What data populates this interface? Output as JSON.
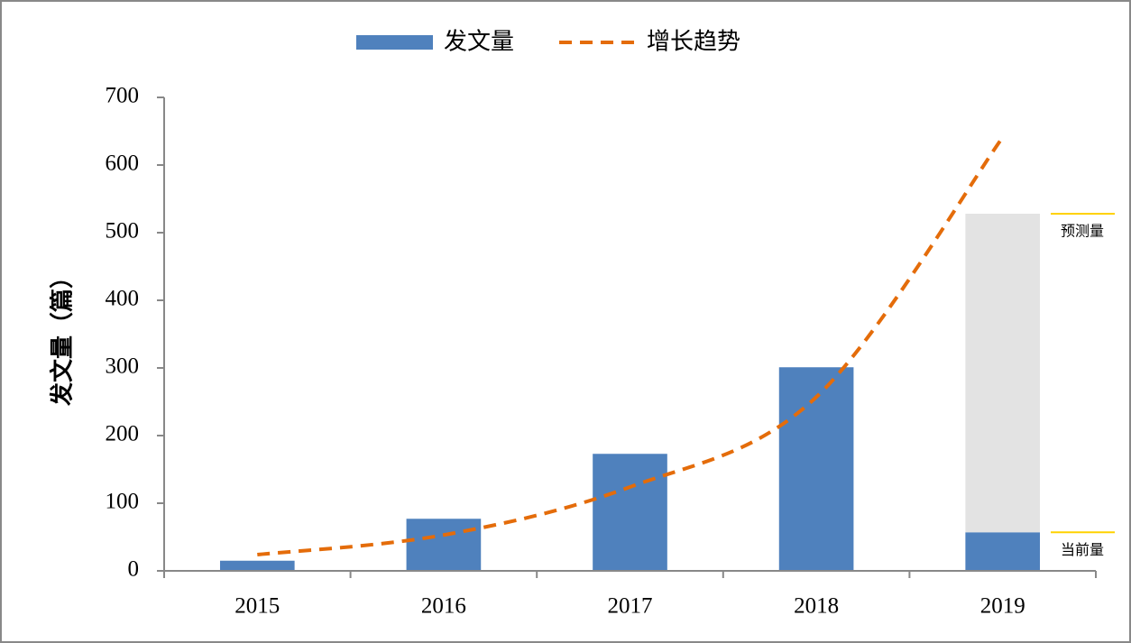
{
  "chart_data": {
    "type": "bar",
    "y_label": "发文量（篇）",
    "categories": [
      "2015",
      "2016",
      "2017",
      "2018",
      "2019"
    ],
    "series": [
      {
        "name": "发文量",
        "type": "bar",
        "color": "#4f81bd",
        "values": [
          15,
          77,
          173,
          301,
          57
        ]
      },
      {
        "type": "bar",
        "stack": true,
        "color": "#e3e3e3",
        "values": [
          null,
          null,
          null,
          null,
          471
        ]
      },
      {
        "name": "增长趋势",
        "type": "line",
        "dashed": true,
        "color": "#e46c0a",
        "values": [
          24,
          53,
          124,
          257,
          641
        ]
      }
    ],
    "annotations": [
      {
        "text": "预测量",
        "value": 528,
        "color": "#ffd200"
      },
      {
        "text": "当前量",
        "value": 57,
        "color": "#ffd200"
      }
    ],
    "ylim": [
      0,
      700
    ],
    "yticks": [
      0,
      100,
      200,
      300,
      400,
      500,
      600,
      700
    ],
    "grid": false
  }
}
